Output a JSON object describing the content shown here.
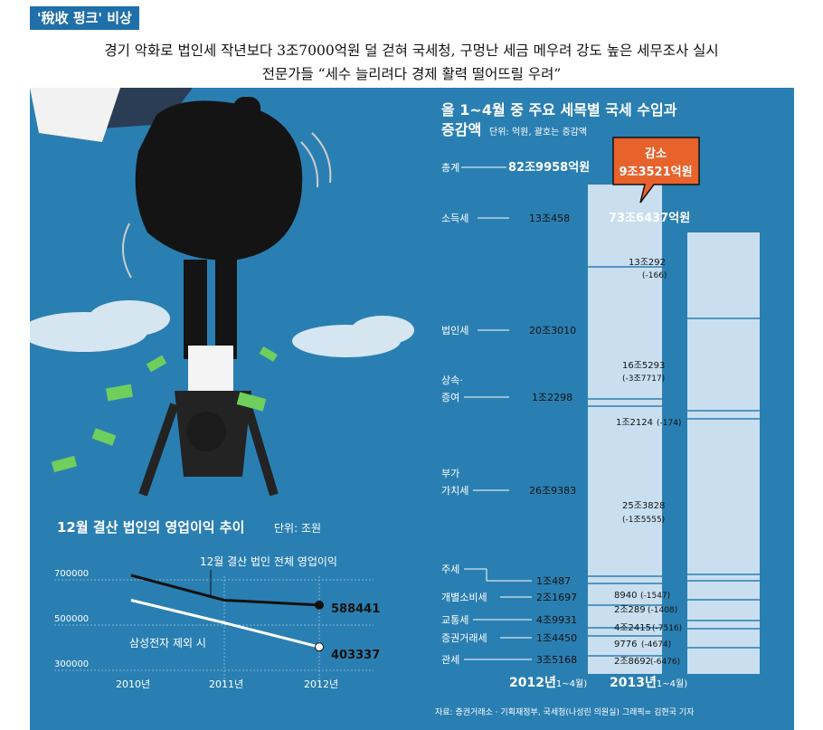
{
  "tag": "'稅收 펑크' 비상",
  "headline": {
    "line1": "경기 악화로 법인세 작년보다 3조7000억원 덜 걷혀    국세청, 구멍난 세금 메우려 강도 높은 세무조사 실시",
    "line2": "전문가들 “세수 늘리려다 경제 활력 떨어뜨릴 우려”"
  },
  "colors": {
    "panel_bg": "#2a7fb2",
    "bar": "#c9dff0",
    "line": "#111111",
    "accent": "#e8622c",
    "money": "#6fcf5c"
  },
  "chart_data": [
    {
      "type": "line",
      "title": "12월 결산 법인의 영업이익 추이",
      "unit": "단위: 조원",
      "x": [
        "2010년",
        "2011년",
        "2012년"
      ],
      "y_ticks": [
        "700000",
        "500000",
        "300000"
      ],
      "ylim": [
        300000,
        700000
      ],
      "series": [
        {
          "name": "12월 결산 법인 전체 영업이익",
          "values": [
            720000,
            610000,
            588441
          ],
          "end_label": "588441"
        },
        {
          "name": "삼성전자 제외 시",
          "values": [
            610000,
            510000,
            403337
          ],
          "end_label": "403337"
        }
      ]
    },
    {
      "type": "bar",
      "title": "올 1~4월 중 주요 세목별 국세 수입과",
      "subtitle": "증감액",
      "unit": "단위: 억원, 괄호는 증감액",
      "callout": {
        "line1": "감소",
        "line2": "9조3521억원"
      },
      "categories": [
        "2012년(1~4월)",
        "2013년(1~4월)"
      ],
      "total_2012": "82조9958억원",
      "total_2013": "73조6437억원",
      "rows": [
        {
          "name": "소득세",
          "v2012": "13조458",
          "v2013": "13조292",
          "change": "(-166)"
        },
        {
          "name": "법인세",
          "v2012": "20조3010",
          "v2013": "16조5293",
          "change": "(-3조7717)"
        },
        {
          "name": "상속·증여",
          "v2012": "1조2298",
          "v2013": "1조2124",
          "change": "(-174)"
        },
        {
          "name": "부가가치세",
          "v2012": "26조9383",
          "v2013": "25조3828",
          "change": "(-1조5555)"
        },
        {
          "name": "주세",
          "v2012": "1조487",
          "v2013": "8940",
          "change": "(-1547)"
        },
        {
          "name": "개별소비세",
          "v2012": "2조1697",
          "v2013": "2조289",
          "change": "(-1408)"
        },
        {
          "name": "교통세",
          "v2012": "4조9931",
          "v2013": "4조2415",
          "change": "(-7516)"
        },
        {
          "name": "증권거래세",
          "v2012": "1조4450",
          "v2013": "9776",
          "change": "(-4674)"
        },
        {
          "name": "관세",
          "v2012": "3조5168",
          "v2013": "2조8692",
          "change": "(-6476)"
        }
      ]
    }
  ],
  "labels": {
    "total": "총계",
    "row_names": [
      "소득세",
      "법인세",
      "상속·",
      "증여",
      "부가",
      "가치세",
      "주세",
      "개별소비세",
      "교통세",
      "증권거래세",
      "관세"
    ],
    "x2012": "2012년",
    "x2013": "2013년",
    "period": "(1~4월)"
  },
  "source": "자료: 증권거래소 · 기획재정부, 국세청(나성린 의원실) 그래픽= 김현국 기자"
}
